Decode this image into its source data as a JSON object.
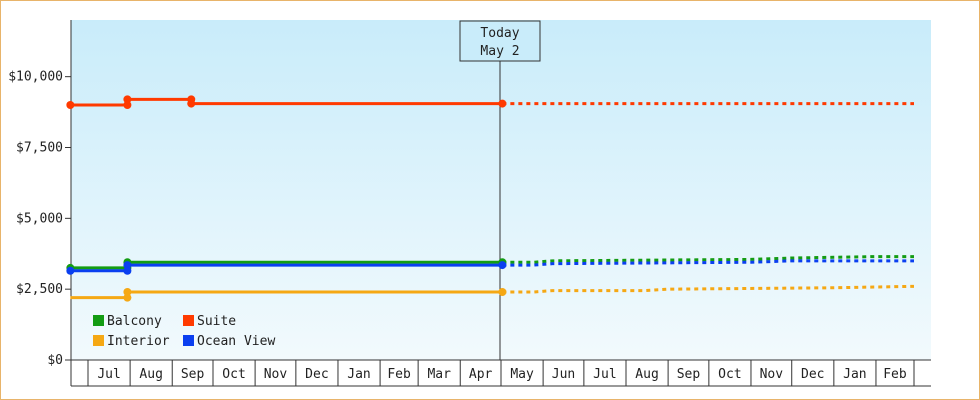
{
  "chart_data": {
    "type": "line",
    "title": "",
    "xlabel": "",
    "ylabel": "",
    "ylim": [
      0,
      12000
    ],
    "y_ticks": [
      {
        "value": 0,
        "label": "$0"
      },
      {
        "value": 2500,
        "label": "$2,500"
      },
      {
        "value": 5000,
        "label": "$5,000"
      },
      {
        "value": 7500,
        "label": "$7,500"
      },
      {
        "value": 10000,
        "label": "$10,000"
      }
    ],
    "months": [
      "Jul",
      "Aug",
      "Sep",
      "Oct",
      "Nov",
      "Dec",
      "Jan",
      "Feb",
      "Mar",
      "Apr",
      "May",
      "Jun",
      "Jul",
      "Aug",
      "Sep",
      "Oct",
      "Nov",
      "Dec",
      "Jan",
      "Feb"
    ],
    "today_marker": {
      "line1": "Today",
      "line2": "May 2"
    },
    "legend_placement": "bottom-left",
    "series": [
      {
        "name": "Suite",
        "color": "#ff3a00",
        "history": [
          [
            "06-18",
            9000
          ],
          [
            "07-30",
            9000
          ],
          [
            "07-30",
            9200
          ],
          [
            "09-15",
            9200
          ],
          [
            "09-15",
            9050
          ],
          [
            "05-02",
            9050
          ]
        ],
        "history_markers": [
          [
            "06-18",
            9000
          ],
          [
            "07-30",
            9000
          ],
          [
            "07-30",
            9200
          ],
          [
            "09-15",
            9200
          ],
          [
            "09-15",
            9050
          ],
          [
            "05-02",
            9050
          ]
        ],
        "projection": [
          [
            "05-02",
            9050
          ],
          [
            "03-01",
            9050
          ]
        ]
      },
      {
        "name": "Balcony",
        "color": "#139c13",
        "history": [
          [
            "06-18",
            3250
          ],
          [
            "07-30",
            3250
          ],
          [
            "07-30",
            3450
          ],
          [
            "05-02",
            3450
          ]
        ],
        "history_markers": [
          [
            "06-18",
            3250
          ],
          [
            "07-30",
            3250
          ],
          [
            "07-30",
            3450
          ],
          [
            "05-02",
            3450
          ]
        ],
        "projection": [
          [
            "05-02",
            3450
          ],
          [
            "05-25",
            3450
          ],
          [
            "06-08",
            3500
          ],
          [
            "11-01",
            3550
          ],
          [
            "12-01",
            3600
          ],
          [
            "02-01",
            3650
          ],
          [
            "03-01",
            3650
          ]
        ]
      },
      {
        "name": "Ocean View",
        "color": "#0a3ff0",
        "history": [
          [
            "06-18",
            3150
          ],
          [
            "07-30",
            3150
          ],
          [
            "07-30",
            3350
          ],
          [
            "05-02",
            3350
          ]
        ],
        "history_markers": [
          [
            "06-18",
            3150
          ],
          [
            "07-30",
            3150
          ],
          [
            "07-30",
            3350
          ],
          [
            "05-02",
            3350
          ]
        ],
        "projection": [
          [
            "05-02",
            3350
          ],
          [
            "05-25",
            3350
          ],
          [
            "06-08",
            3400
          ],
          [
            "11-01",
            3450
          ],
          [
            "12-01",
            3500
          ],
          [
            "03-01",
            3500
          ]
        ]
      },
      {
        "name": "Interior",
        "color": "#f5a814",
        "history": [
          [
            "06-18",
            2200
          ],
          [
            "07-30",
            2200
          ],
          [
            "07-30",
            2400
          ],
          [
            "05-02",
            2400
          ]
        ],
        "history_markers": [
          [
            "07-30",
            2200
          ],
          [
            "07-30",
            2400
          ],
          [
            "05-02",
            2400
          ]
        ],
        "projection": [
          [
            "05-02",
            2400
          ],
          [
            "05-25",
            2400
          ],
          [
            "06-08",
            2450
          ],
          [
            "08-15",
            2450
          ],
          [
            "09-01",
            2500
          ],
          [
            "01-01",
            2550
          ],
          [
            "03-01",
            2600
          ]
        ]
      }
    ],
    "legend": [
      {
        "name": "Balcony",
        "color": "#139c13"
      },
      {
        "name": "Suite",
        "color": "#ff3a00"
      },
      {
        "name": "Interior",
        "color": "#f5a814"
      },
      {
        "name": "Ocean View",
        "color": "#0a3ff0"
      }
    ]
  }
}
